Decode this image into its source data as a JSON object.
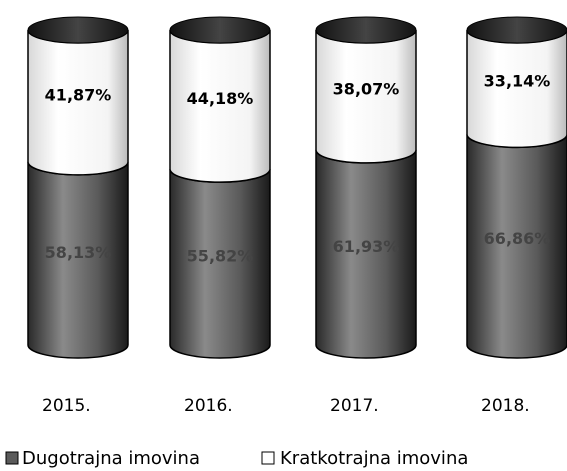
{
  "chart_data": {
    "type": "bar",
    "stacked": true,
    "categories": [
      "2015.",
      "2016.",
      "2017.",
      "2018."
    ],
    "series": [
      {
        "name": "Dugotrajna imovina",
        "color": "#5a5a5a",
        "values": [
          58.13,
          55.82,
          61.93,
          66.86
        ],
        "value_labels": [
          "58,13%",
          "55,82%",
          "61,93%",
          "66,86%"
        ]
      },
      {
        "name": "Kratkotrajna imovina",
        "color": "#ffffff",
        "values": [
          41.87,
          44.18,
          38.07,
          33.14
        ],
        "value_labels": [
          "41,87%",
          "44,18%",
          "38,07%",
          "33,14%"
        ]
      }
    ]
  }
}
